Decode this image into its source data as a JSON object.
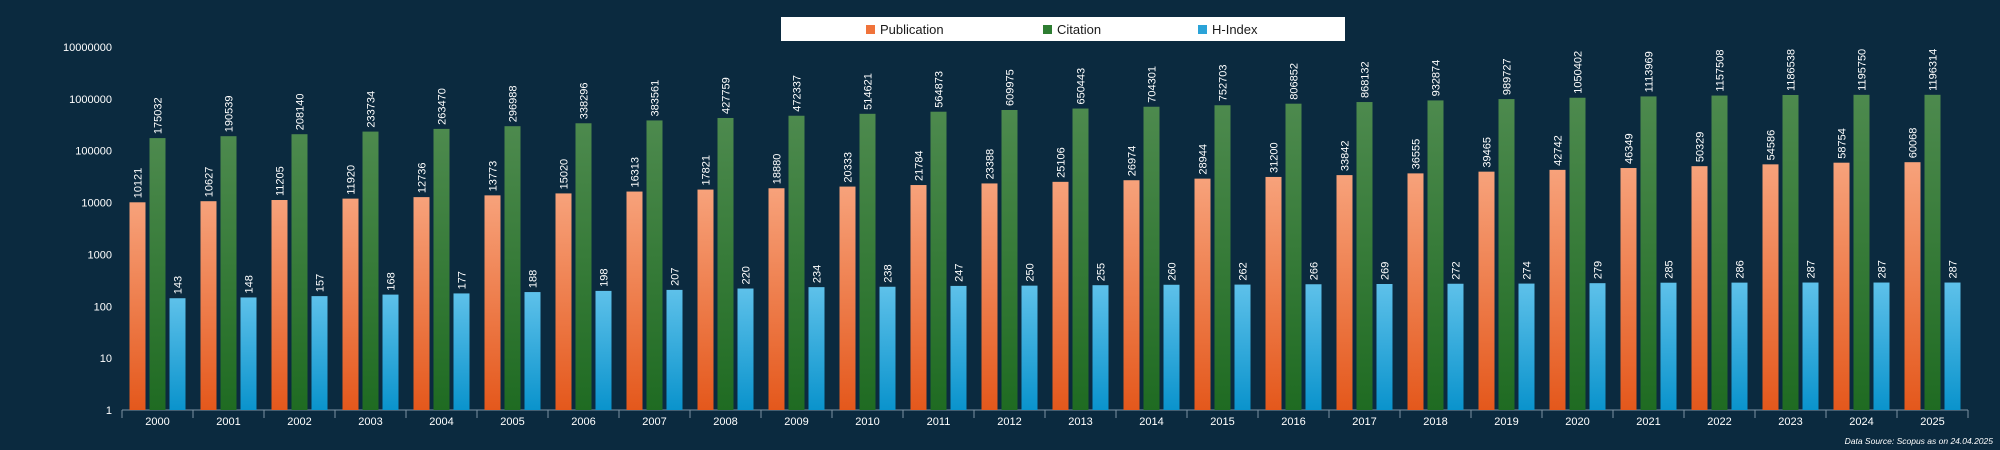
{
  "chart_data": {
    "type": "bar",
    "scale": "log",
    "ylim": [
      1,
      10000000
    ],
    "y_ticks": [
      1,
      10,
      100,
      1000,
      10000,
      100000,
      1000000,
      10000000
    ],
    "y_tick_labels": [
      "1",
      "10",
      "100",
      "1000",
      "10000",
      "100000",
      "1000000",
      "10000000"
    ],
    "categories": [
      "2000",
      "2001",
      "2002",
      "2003",
      "2004",
      "2005",
      "2006",
      "2007",
      "2008",
      "2009",
      "2010",
      "2011",
      "2012",
      "2013",
      "2014",
      "2015",
      "2016",
      "2017",
      "2018",
      "2019",
      "2020",
      "2021",
      "2022",
      "2023",
      "2024",
      "2025"
    ],
    "series": [
      {
        "name": "Publication",
        "color": "#f0733a",
        "values": [
          10121,
          10627,
          11205,
          11920,
          12736,
          13773,
          15020,
          16313,
          17821,
          18880,
          20333,
          21784,
          23388,
          25106,
          26974,
          28944,
          31200,
          33842,
          36555,
          39465,
          42742,
          46349,
          50329,
          54586,
          58754,
          60068
        ]
      },
      {
        "name": "Citation",
        "color": "#2e7d32",
        "values": [
          175032,
          190539,
          208140,
          233734,
          263470,
          296988,
          338296,
          383561,
          427759,
          472337,
          514621,
          564873,
          609975,
          650443,
          704301,
          752703,
          806852,
          868132,
          932874,
          989727,
          1050402,
          1113969,
          1157508,
          1186538,
          1195750,
          1196314
        ]
      },
      {
        "name": "H-Index",
        "color": "#2aa3d8",
        "values": [
          143,
          148,
          157,
          168,
          177,
          188,
          198,
          207,
          220,
          234,
          238,
          247,
          250,
          255,
          260,
          262,
          266,
          269,
          272,
          274,
          279,
          285,
          286,
          287,
          287,
          287
        ]
      }
    ],
    "legend": {
      "position": "top-center"
    },
    "grid": false,
    "annotation": "Data Source: Scopus as on 24.04.2025"
  }
}
